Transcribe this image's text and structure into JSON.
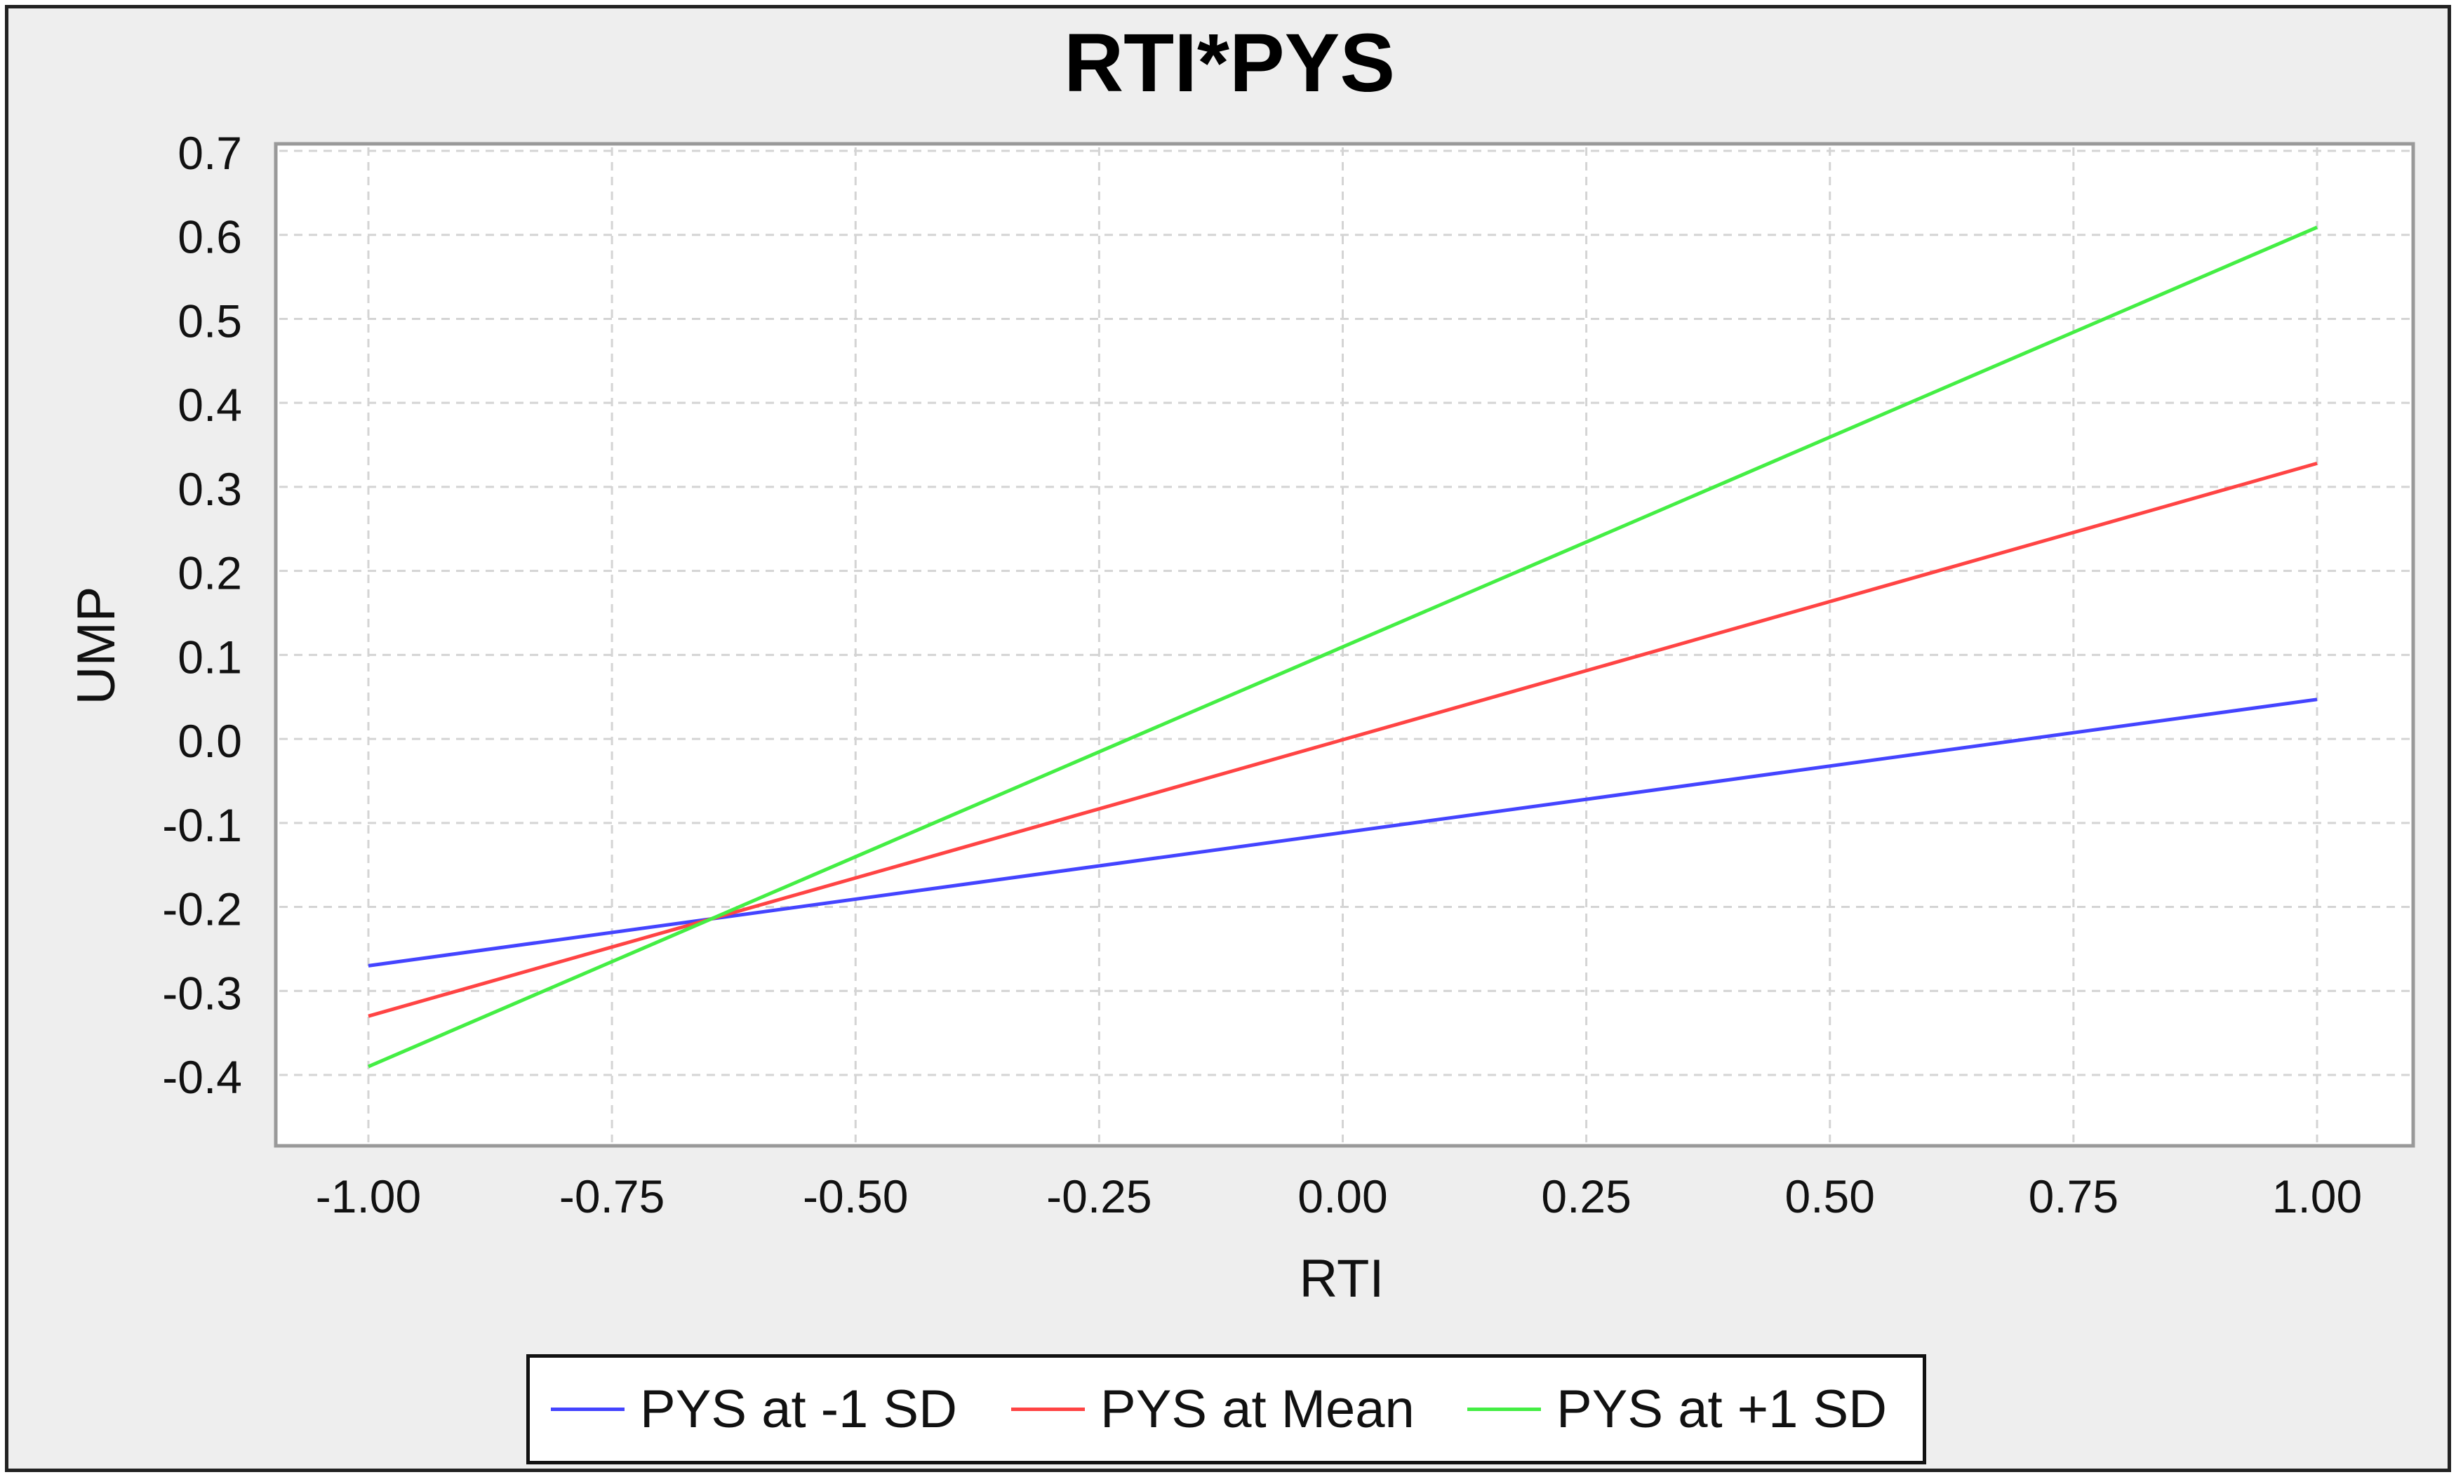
{
  "chart_data": {
    "type": "line",
    "title": "RTI*PYS",
    "xlabel": "RTI",
    "ylabel": "UMP",
    "xlim": [
      -1.0,
      1.0
    ],
    "ylim": [
      -0.4,
      0.7
    ],
    "x_ticks": [
      "-1.00",
      "-0.75",
      "-0.50",
      "-0.25",
      "0.00",
      "0.25",
      "0.50",
      "0.75",
      "1.00"
    ],
    "y_ticks": [
      "0.7",
      "0.6",
      "0.5",
      "0.4",
      "0.3",
      "0.2",
      "0.1",
      "0.0",
      "-0.1",
      "-0.2",
      "-0.3",
      "-0.4"
    ],
    "grid": true,
    "legend_position": "bottom",
    "series": [
      {
        "name": "PYS at -1 SD",
        "color": "#4444ff",
        "x": [
          -1.0,
          1.0
        ],
        "values": [
          -0.27,
          0.047
        ]
      },
      {
        "name": "PYS at Mean",
        "color": "#ff4444",
        "x": [
          -1.0,
          1.0
        ],
        "values": [
          -0.33,
          0.328
        ]
      },
      {
        "name": "PYS at +1 SD",
        "color": "#44ee44",
        "x": [
          -1.0,
          1.0
        ],
        "values": [
          -0.39,
          0.609
        ]
      }
    ]
  }
}
